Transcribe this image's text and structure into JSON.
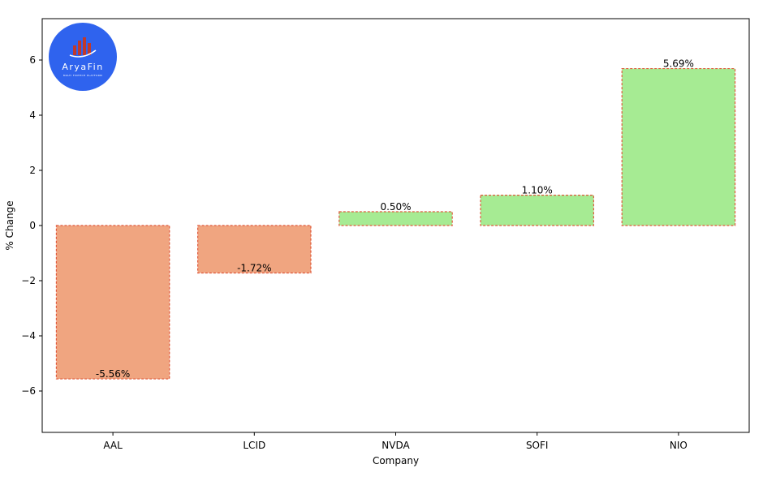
{
  "chart_data": {
    "type": "bar",
    "categories": [
      "AAL",
      "LCID",
      "NVDA",
      "SOFI",
      "NIO"
    ],
    "values": [
      -5.56,
      -1.72,
      0.5,
      1.1,
      5.69
    ],
    "data_labels": [
      "-5.56%",
      "-1.72%",
      "0.50%",
      "1.10%",
      "5.69%"
    ],
    "title": "",
    "xlabel": "Company",
    "ylabel": "% Change",
    "ylim": [
      -7.5,
      7.5
    ],
    "yticks": [
      -6,
      -4,
      -2,
      0,
      2,
      4,
      6
    ],
    "ytick_labels": [
      "−6",
      "−4",
      "−2",
      "0",
      "2",
      "4",
      "6"
    ],
    "grid": false,
    "colors": {
      "positive_fill": "#a6eb93",
      "negative_fill": "#f0a580",
      "bar_edge": "#e05a3c"
    }
  },
  "logo": {
    "name": "AryaFin",
    "tagline": "MULTI FINTECH PLATFORM",
    "color": "#2f63ee"
  }
}
